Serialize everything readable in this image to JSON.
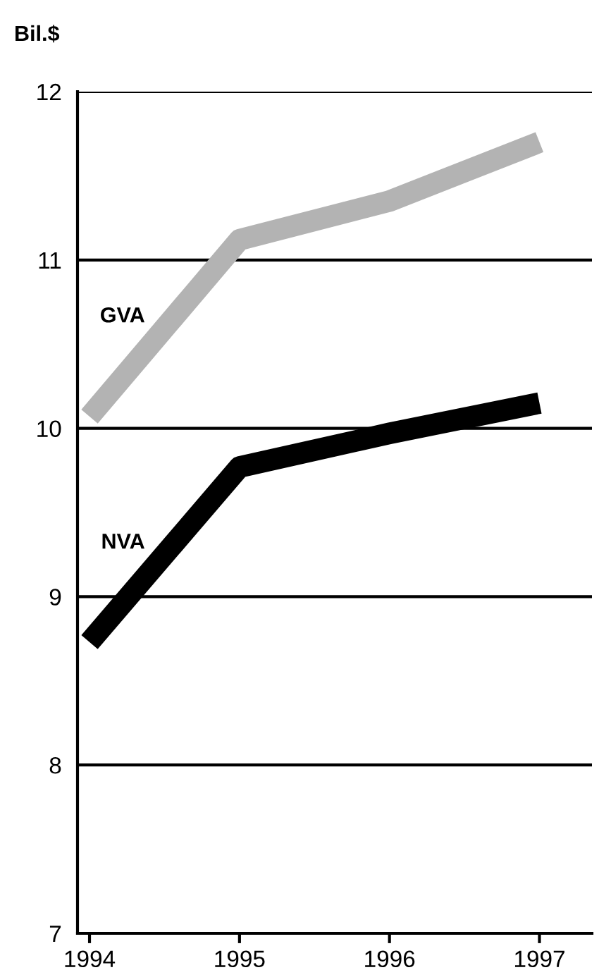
{
  "chart_data": {
    "type": "line",
    "ylabel": "Bil.$",
    "categories": [
      "1994",
      "1995",
      "1996",
      "1997"
    ],
    "series": [
      {
        "name": "GVA",
        "color": "#b3b3b3",
        "values": [
          10.07,
          11.12,
          11.35,
          11.7
        ]
      },
      {
        "name": "NVA",
        "color": "#000000",
        "values": [
          8.73,
          9.77,
          9.97,
          10.15
        ]
      }
    ],
    "ylim": [
      7,
      12
    ],
    "yticks": [
      7,
      8,
      9,
      10,
      11,
      12
    ],
    "grid": "y",
    "marker": "none",
    "line_style": "solid"
  }
}
